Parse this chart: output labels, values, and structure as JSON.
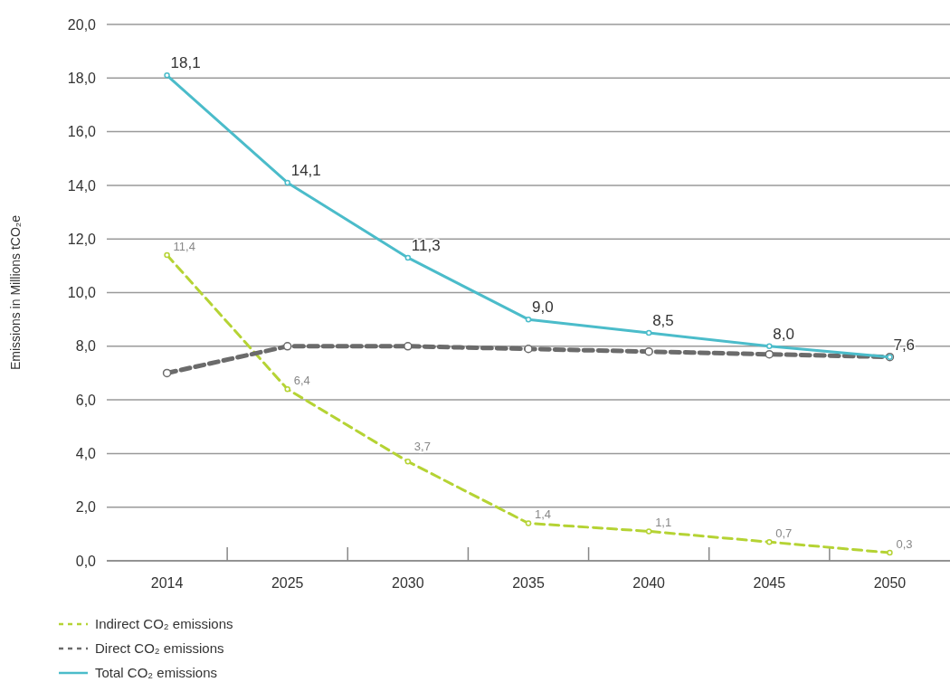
{
  "chart_data": {
    "type": "line",
    "ylabel": "Emissions in Millions tCO₂e",
    "categories": [
      "2014",
      "2025",
      "2030",
      "2035",
      "2040",
      "2045",
      "2050"
    ],
    "series": [
      {
        "name": "Indirect CO₂ emissions",
        "color": "#b5d334",
        "line_style": "dashed",
        "values": [
          11.4,
          6.4,
          3.7,
          1.4,
          1.1,
          0.7,
          0.3
        ],
        "value_labels": [
          "11,4",
          "6,4",
          "3,7",
          "1,4",
          "1,1",
          "0,7",
          "0,3"
        ]
      },
      {
        "name": "Direct CO₂ emissions",
        "color": "#6b6b6b",
        "line_style": "dashed",
        "values": [
          7.0,
          8.0,
          8.0,
          7.9,
          7.8,
          7.7,
          7.6
        ]
      },
      {
        "name": "Total CO₂ emissions",
        "color": "#4bbcca",
        "line_style": "solid",
        "values": [
          18.1,
          14.1,
          11.3,
          9.0,
          8.5,
          8.0,
          7.6
        ],
        "value_labels": [
          "18,1",
          "14,1",
          "11,3",
          "9,0",
          "8,5",
          "8,0",
          "7,6"
        ]
      }
    ],
    "ylim": [
      0,
      20
    ],
    "yticks": [
      {
        "value": 0,
        "label": "0,0"
      },
      {
        "value": 2,
        "label": "2,0"
      },
      {
        "value": 4,
        "label": "4,0"
      },
      {
        "value": 6,
        "label": "6,0"
      },
      {
        "value": 8,
        "label": "8,0"
      },
      {
        "value": 10,
        "label": "10,0"
      },
      {
        "value": 12,
        "label": "12,0"
      },
      {
        "value": 14,
        "label": "14,0"
      },
      {
        "value": 16,
        "label": "16,0"
      },
      {
        "value": 18,
        "label": "18,0"
      },
      {
        "value": 20,
        "label": "20,0"
      }
    ],
    "grid": "y",
    "marker": "circle",
    "legend": "bottom left"
  }
}
